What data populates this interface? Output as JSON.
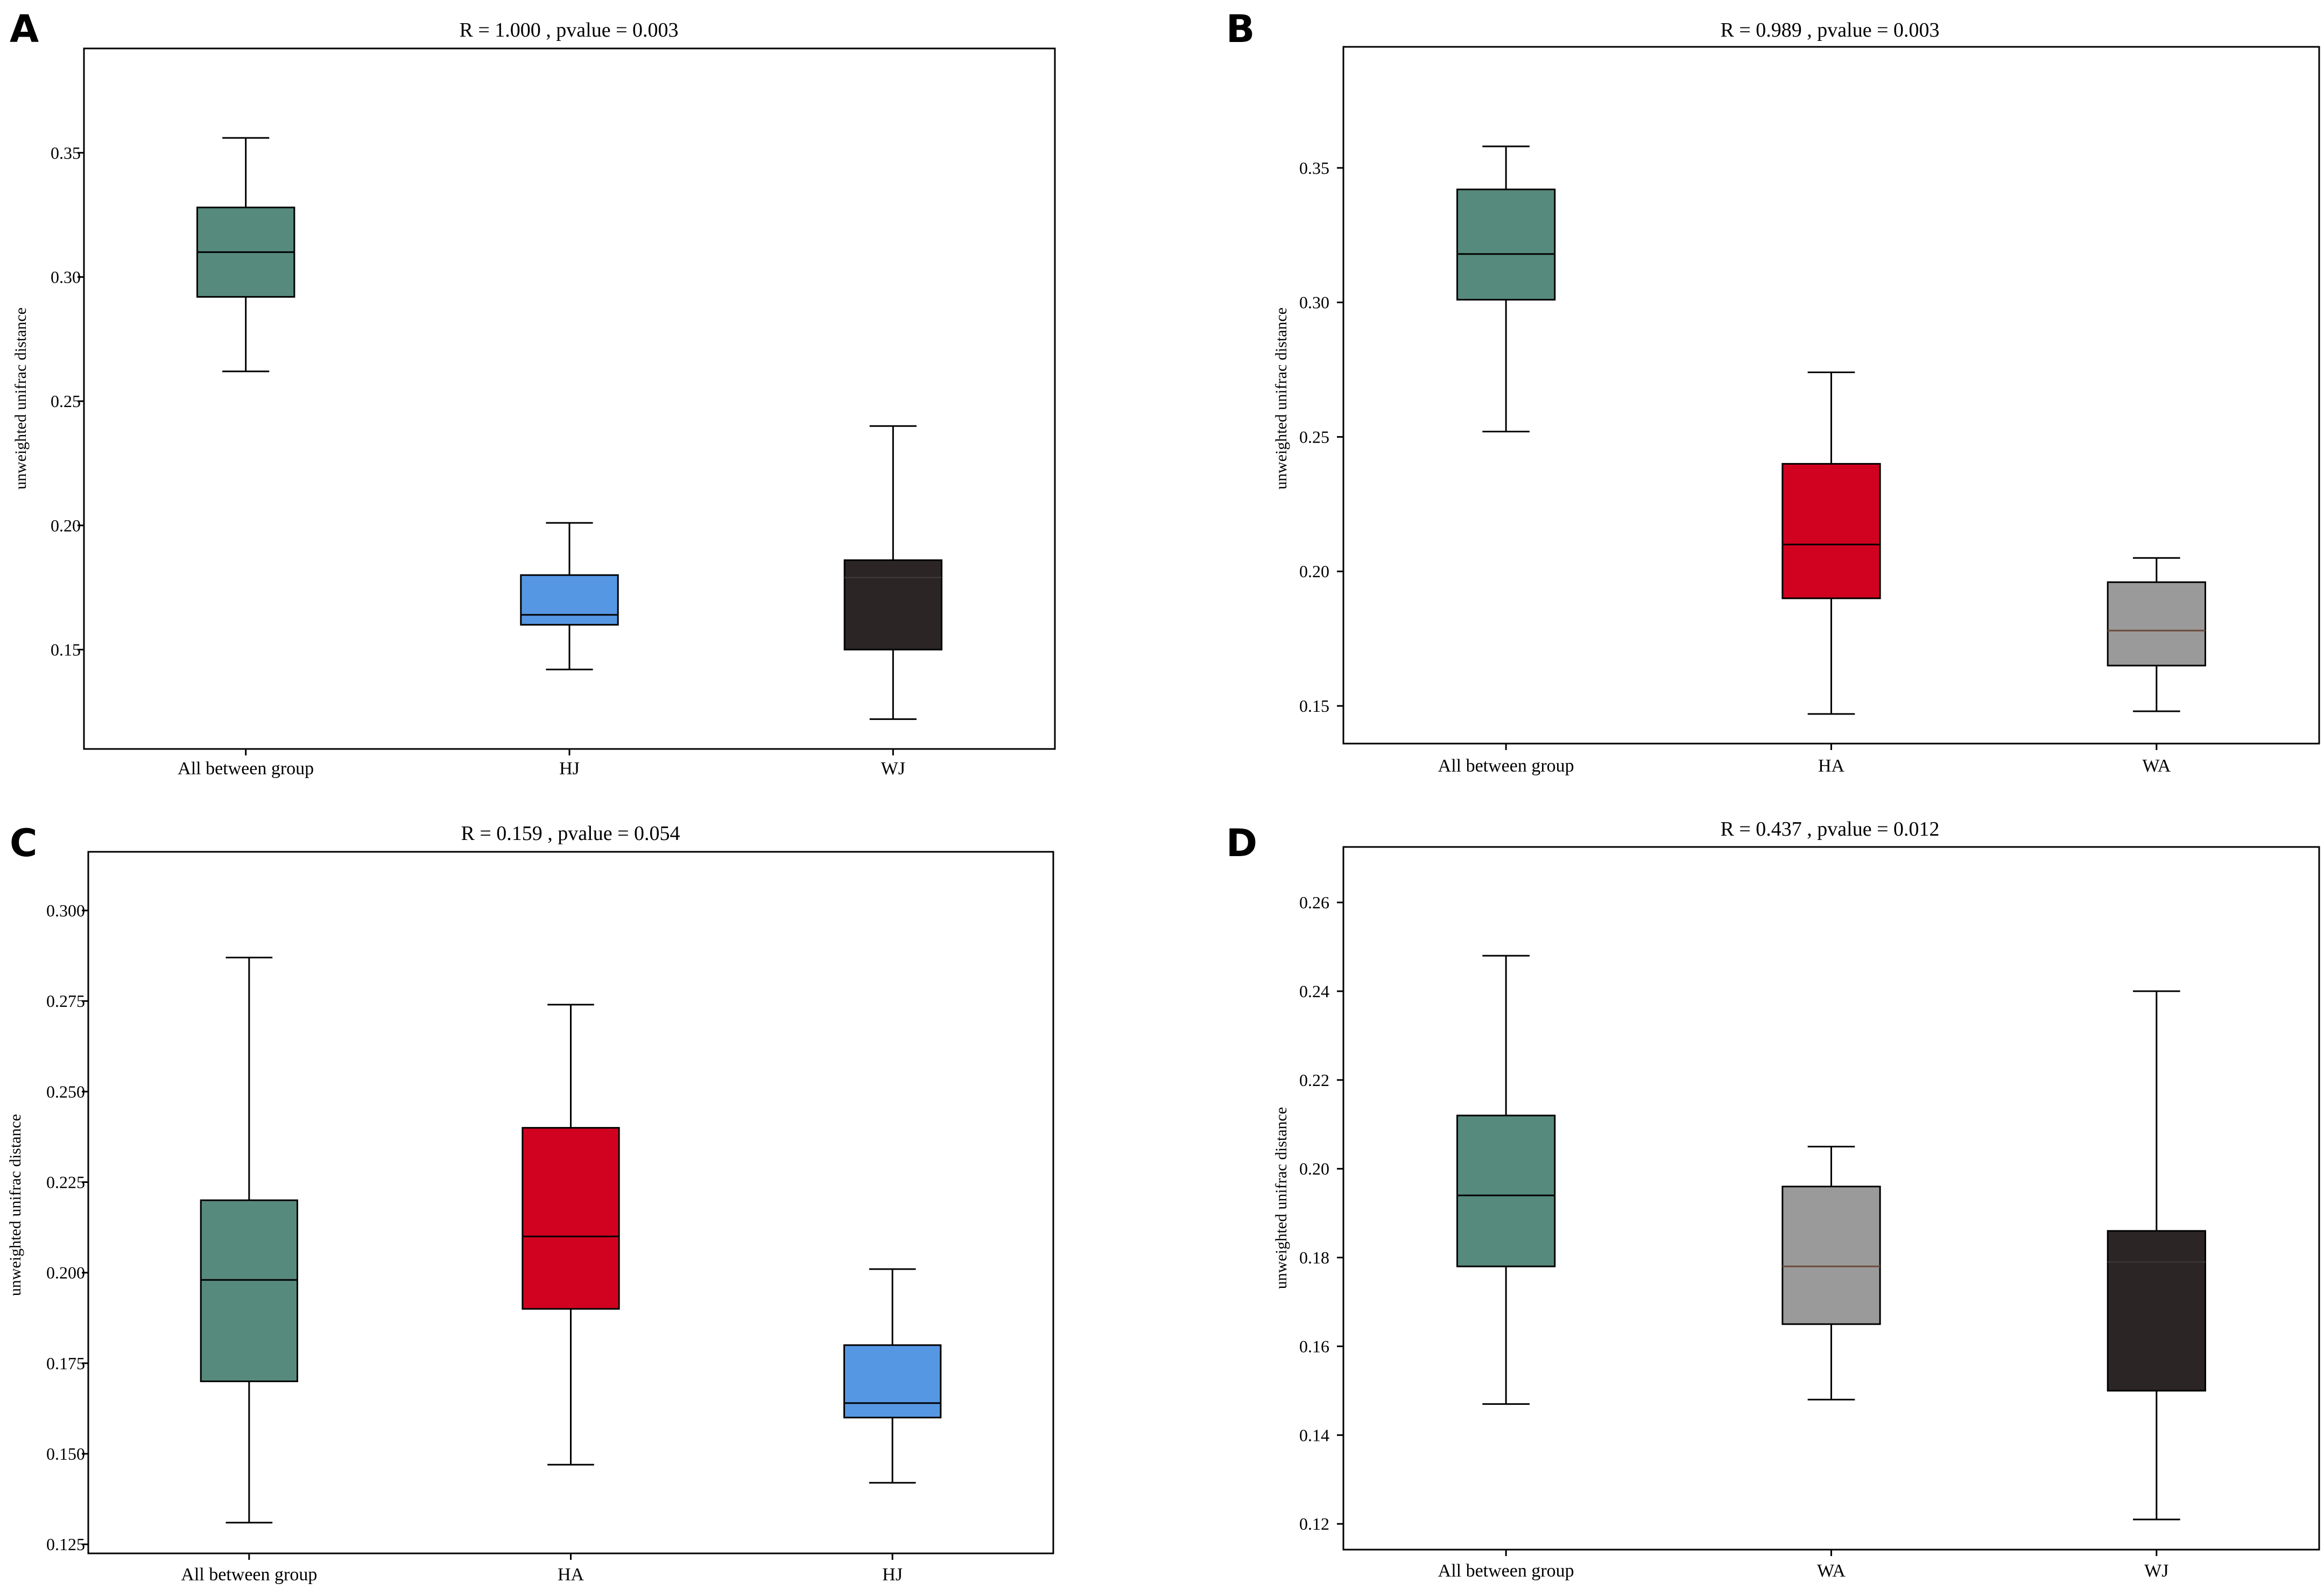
{
  "figure": {
    "panels": [
      "A",
      "B",
      "C",
      "D"
    ]
  },
  "colors": {
    "all_between": "#568a7c",
    "HJ": "#5597e3",
    "WJ": "#2b2526",
    "HA": "#d0021f",
    "WA": "#9b9a9a",
    "WA_median": "#6b4a3a"
  },
  "chart_data": [
    {
      "panel": "A",
      "type": "box",
      "title": "R = 1.000 , pvalue = 0.003",
      "ylabel": "unweighted unifrac distance",
      "xlabel": "",
      "ylim": [
        0.11,
        0.392
      ],
      "yticks": [
        0.15,
        0.2,
        0.25,
        0.3,
        0.35
      ],
      "ytick_labels": [
        "0.15",
        "0.20",
        "0.25",
        "0.30",
        "0.35"
      ],
      "categories": [
        "All between group",
        "HJ",
        "WJ"
      ],
      "series": [
        {
          "name": "All between group",
          "color_key": "all_between",
          "whisker_low": 0.262,
          "q1": 0.292,
          "median": 0.31,
          "q3": 0.328,
          "whisker_high": 0.356
        },
        {
          "name": "HJ",
          "color_key": "HJ",
          "whisker_low": 0.142,
          "q1": 0.16,
          "median": 0.164,
          "q3": 0.18,
          "whisker_high": 0.201
        },
        {
          "name": "WJ",
          "color_key": "WJ",
          "whisker_low": 0.122,
          "q1": 0.15,
          "median": 0.179,
          "q3": 0.186,
          "whisker_high": 0.24
        }
      ]
    },
    {
      "panel": "B",
      "type": "box",
      "title": "R = 0.989 , pvalue = 0.003",
      "ylabel": "unweighted unifrac distance",
      "xlabel": "",
      "ylim": [
        0.136,
        0.395
      ],
      "yticks": [
        0.15,
        0.2,
        0.25,
        0.3,
        0.35
      ],
      "ytick_labels": [
        "0.15",
        "0.20",
        "0.25",
        "0.30",
        "0.35"
      ],
      "categories": [
        "All between group",
        "HA",
        "WA"
      ],
      "series": [
        {
          "name": "All between group",
          "color_key": "all_between",
          "whisker_low": 0.252,
          "q1": 0.301,
          "median": 0.318,
          "q3": 0.342,
          "whisker_high": 0.358
        },
        {
          "name": "HA",
          "color_key": "HA",
          "whisker_low": 0.147,
          "q1": 0.19,
          "median": 0.21,
          "q3": 0.24,
          "whisker_high": 0.274
        },
        {
          "name": "WA",
          "color_key": "WA",
          "whisker_low": 0.148,
          "q1": 0.165,
          "median": 0.178,
          "q3": 0.196,
          "whisker_high": 0.205
        }
      ]
    },
    {
      "panel": "C",
      "type": "box",
      "title": "R = 0.159 , pvalue = 0.054",
      "ylabel": "unweighted unifrac distance",
      "xlabel": "",
      "ylim": [
        0.1225,
        0.3162
      ],
      "yticks": [
        0.125,
        0.15,
        0.175,
        0.2,
        0.225,
        0.25,
        0.275,
        0.3
      ],
      "ytick_labels": [
        "0.125",
        "0.150",
        "0.175",
        "0.200",
        "0.225",
        "0.250",
        "0.275",
        "0.300"
      ],
      "categories": [
        "All between group",
        "HA",
        "HJ"
      ],
      "series": [
        {
          "name": "All between group",
          "color_key": "all_between",
          "whisker_low": 0.131,
          "q1": 0.17,
          "median": 0.198,
          "q3": 0.22,
          "whisker_high": 0.287
        },
        {
          "name": "HA",
          "color_key": "HA",
          "whisker_low": 0.147,
          "q1": 0.19,
          "median": 0.21,
          "q3": 0.24,
          "whisker_high": 0.274
        },
        {
          "name": "HJ",
          "color_key": "HJ",
          "whisker_low": 0.142,
          "q1": 0.16,
          "median": 0.164,
          "q3": 0.18,
          "whisker_high": 0.201
        }
      ]
    },
    {
      "panel": "D",
      "type": "box",
      "title": "R = 0.437 , pvalue = 0.012",
      "ylabel": "unweighted unifrac distance",
      "xlabel": "",
      "ylim": [
        0.1142,
        0.2725
      ],
      "yticks": [
        0.12,
        0.14,
        0.16,
        0.18,
        0.2,
        0.22,
        0.24,
        0.26
      ],
      "ytick_labels": [
        "0.12",
        "0.14",
        "0.16",
        "0.18",
        "0.20",
        "0.22",
        "0.24",
        "0.26"
      ],
      "categories": [
        "All between group",
        "WA",
        "WJ"
      ],
      "series": [
        {
          "name": "All between group",
          "color_key": "all_between",
          "whisker_low": 0.147,
          "q1": 0.178,
          "median": 0.194,
          "q3": 0.212,
          "whisker_high": 0.248
        },
        {
          "name": "WA",
          "color_key": "WA",
          "whisker_low": 0.148,
          "q1": 0.165,
          "median": 0.178,
          "q3": 0.196,
          "whisker_high": 0.205
        },
        {
          "name": "WJ",
          "color_key": "WJ",
          "whisker_low": 0.121,
          "q1": 0.15,
          "median": 0.179,
          "q3": 0.186,
          "whisker_high": 0.24
        }
      ]
    }
  ]
}
